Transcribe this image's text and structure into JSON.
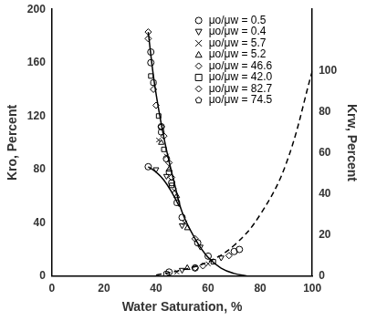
{
  "chart_data": {
    "type": "scatter",
    "x_label": "Water Saturation, %",
    "y_label": "Kro, Percent",
    "y2_label": "Krw, Percent",
    "xlim": [
      0,
      100
    ],
    "xticks": [
      0,
      20,
      40,
      60,
      80,
      100
    ],
    "ylim": [
      0,
      200
    ],
    "yticks": [
      0,
      40,
      80,
      120,
      160,
      200
    ],
    "y2lim": [
      0,
      130
    ],
    "y2ticks": [
      0,
      20,
      40,
      60,
      80,
      100
    ],
    "grid": false,
    "legend": "upper right",
    "series": [
      {
        "name": "μo/μw = 0.5",
        "marker": "circle",
        "color": "#000000",
        "x": [
          37,
          38,
          38,
          42,
          44,
          46,
          50,
          56,
          60
        ],
        "values": [
          82,
          168,
          160,
          112,
          88,
          70,
          44,
          25,
          15
        ]
      },
      {
        "name": "μo/μw = 0.5",
        "marker": "circle",
        "color": "#000000",
        "axis": "y2",
        "x": [
          45,
          55,
          70,
          72
        ],
        "values": [
          2,
          4,
          12,
          13
        ]
      },
      {
        "name": "μo/μw = 0.4",
        "marker": "triangle_down",
        "color": "#000000",
        "x": [
          40,
          44,
          50,
          57
        ],
        "values": [
          80,
          75,
          38,
          22
        ]
      },
      {
        "name": "μo/μw = 0.4",
        "marker": "triangle_down",
        "color": "#000000",
        "axis": "y2",
        "x": [
          50,
          65
        ],
        "values": [
          3,
          9
        ]
      },
      {
        "name": "μo/μw = 5.7",
        "marker": "x",
        "color": "#000000",
        "x": [
          41,
          44,
          47,
          51
        ],
        "values": [
          102,
          90,
          64,
          40
        ]
      },
      {
        "name": "μo/μw = 5.7",
        "marker": "x",
        "color": "#000000",
        "axis": "y2",
        "x": [
          48,
          60
        ],
        "values": [
          2,
          6
        ]
      },
      {
        "name": "μo/μw = 5.2",
        "marker": "triangle",
        "color": "#000000",
        "x": [
          42,
          45,
          48,
          52
        ],
        "values": [
          100,
          80,
          60,
          36
        ]
      },
      {
        "name": "μo/μw = 5.2",
        "marker": "triangle",
        "color": "#000000",
        "axis": "y2",
        "x": [
          52
        ],
        "values": [
          4
        ]
      },
      {
        "name": "μo/μw = 46.6",
        "marker": "diamond",
        "color": "#000000",
        "x": [
          37,
          40,
          43,
          46,
          55
        ],
        "values": [
          183,
          128,
          105,
          74,
          28
        ]
      },
      {
        "name": "μo/μw = 46.6",
        "marker": "diamond",
        "color": "#000000",
        "axis": "y2",
        "x": [
          58,
          68
        ],
        "values": [
          5,
          10
        ]
      },
      {
        "name": "μo/μw = 42.0",
        "marker": "square",
        "color": "#000000",
        "x": [
          38,
          41,
          43,
          46
        ],
        "values": [
          150,
          120,
          95,
          68
        ]
      },
      {
        "name": "μo/μw = 42.0",
        "marker": "square",
        "color": "#000000",
        "axis": "y2",
        "x": [
          62
        ],
        "values": [
          7
        ]
      },
      {
        "name": "μo/μw = 82.7",
        "marker": "diamond",
        "color": "#000000",
        "x": [
          37,
          39,
          42,
          45
        ],
        "values": [
          178,
          140,
          112,
          85
        ]
      },
      {
        "name": "μo/μw = 82.7",
        "marker": "diamond",
        "color": "#000000",
        "axis": "y2",
        "x": [
          55
        ],
        "values": [
          4
        ]
      },
      {
        "name": "μo/μw = 74.5",
        "marker": "pentagon",
        "color": "#000000",
        "x": [
          39,
          42,
          45,
          48
        ],
        "values": [
          145,
          108,
          78,
          55
        ]
      },
      {
        "name": "μo/μw = 74.5",
        "marker": "pentagon",
        "color": "#000000",
        "axis": "y2",
        "x": [
          44
        ],
        "values": [
          1
        ]
      },
      {
        "type": "line",
        "line_style": "solid",
        "color": "#000000",
        "x": [
          37,
          39,
          41,
          43,
          45,
          47,
          50,
          55,
          60,
          65,
          70,
          75
        ],
        "values": [
          183,
          150,
          125,
          104,
          86,
          70,
          48,
          28,
          14,
          6,
          2,
          0
        ]
      },
      {
        "type": "line",
        "line_style": "solid",
        "color": "#000000",
        "x": [
          37,
          40,
          43,
          46,
          49
        ],
        "values": [
          82,
          78,
          72,
          63,
          52
        ]
      },
      {
        "type": "line",
        "line_style": "dashed",
        "color": "#000000",
        "axis": "y2",
        "x": [
          40,
          50,
          60,
          70,
          80,
          90,
          100
        ],
        "values": [
          0.5,
          3,
          7,
          15,
          30,
          55,
          100
        ]
      }
    ]
  }
}
